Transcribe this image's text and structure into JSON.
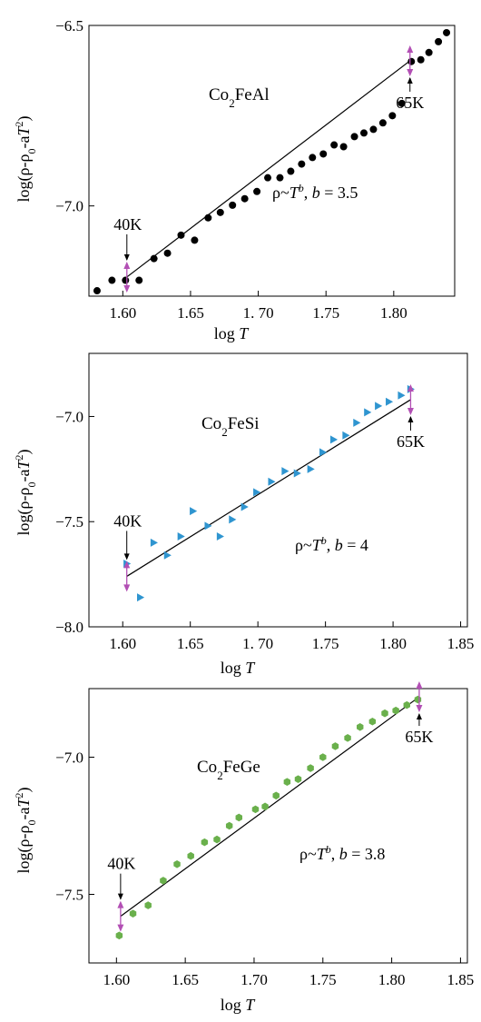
{
  "chart_data": [
    {
      "type": "scatter",
      "compound": "Co2FeAl",
      "title": {
        "base": "Co",
        "sub": "2",
        "rest": "FeAl"
      },
      "xlabel": "log T",
      "ylabel": "log(ρ-ρ0-aT2)",
      "xlim": [
        1.575,
        1.845
      ],
      "ylim": [
        -7.25,
        -6.5
      ],
      "xticks": [
        1.6,
        1.65,
        1.7,
        1.75,
        1.8
      ],
      "xtick_labels": [
        "1.60",
        "1.65",
        "1. 70",
        "1.75",
        "1.80"
      ],
      "yticks": [
        -6.5,
        -7.0
      ],
      "ytick_labels": [
        "−6.5",
        "−7.0"
      ],
      "marker": "circle",
      "color": "#000000",
      "equation": "ρ~T^b, b = 3.5",
      "exponent_b": "3.5",
      "fit": {
        "x": [
          1.603,
          1.812
        ],
        "y": [
          -7.197,
          -6.598
        ]
      },
      "annotations": [
        {
          "text": "40K",
          "x": 1.603,
          "y": -7.197
        },
        {
          "text": "65K",
          "x": 1.812,
          "y": -6.598
        }
      ],
      "x": [
        1.581,
        1.592,
        1.602,
        1.612,
        1.623,
        1.633,
        1.643,
        1.653,
        1.663,
        1.672,
        1.681,
        1.69,
        1.699,
        1.707,
        1.716,
        1.724,
        1.732,
        1.74,
        1.748,
        1.756,
        1.763,
        1.771,
        1.778,
        1.785,
        1.792,
        1.799,
        1.806,
        1.813,
        1.82,
        1.826,
        1.833,
        1.839
      ],
      "y": [
        -7.235,
        -7.206,
        -7.206,
        -7.206,
        -7.146,
        -7.131,
        -7.081,
        -7.095,
        -7.033,
        -7.018,
        -6.998,
        -6.98,
        -6.96,
        -6.922,
        -6.922,
        -6.904,
        -6.884,
        -6.866,
        -6.856,
        -6.831,
        -6.836,
        -6.808,
        -6.798,
        -6.788,
        -6.77,
        -6.75,
        -6.716,
        -6.6,
        -6.595,
        -6.575,
        -6.545,
        -6.52
      ]
    },
    {
      "type": "scatter",
      "compound": "Co2FeSi",
      "title": {
        "base": "Co",
        "sub": "2",
        "rest": "FeSi"
      },
      "xlabel": "log T",
      "ylabel": "log(ρ-ρ0-aT2)",
      "xlim": [
        1.575,
        1.855
      ],
      "ylim": [
        -8.0,
        -6.7
      ],
      "xticks": [
        1.6,
        1.65,
        1.7,
        1.75,
        1.8,
        1.85
      ],
      "xtick_labels": [
        "1.60",
        "1.65",
        "1. 70",
        "1.75",
        "1.80",
        "1.85"
      ],
      "yticks": [
        -7.0,
        -7.5,
        -8.0
      ],
      "ytick_labels": [
        "−7.0",
        "−7.5",
        "−8.0"
      ],
      "marker": "triangle-right",
      "color": "#2f95d0",
      "equation": "ρ~T^b, b = 4",
      "exponent_b": "4",
      "fit": {
        "x": [
          1.603,
          1.813
        ],
        "y": [
          -7.76,
          -6.92
        ]
      },
      "annotations": [
        {
          "text": "40K",
          "x": 1.603,
          "y": -7.76
        },
        {
          "text": "65K",
          "x": 1.813,
          "y": -6.92
        }
      ],
      "x": [
        1.603,
        1.613,
        1.623,
        1.633,
        1.643,
        1.652,
        1.663,
        1.672,
        1.681,
        1.69,
        1.699,
        1.71,
        1.72,
        1.729,
        1.739,
        1.748,
        1.756,
        1.765,
        1.773,
        1.781,
        1.789,
        1.797,
        1.806,
        1.813
      ],
      "y": [
        -7.7,
        -7.86,
        -7.6,
        -7.66,
        -7.57,
        -7.45,
        -7.52,
        -7.57,
        -7.49,
        -7.43,
        -7.36,
        -7.31,
        -7.26,
        -7.27,
        -7.25,
        -7.17,
        -7.11,
        -7.09,
        -7.03,
        -6.98,
        -6.95,
        -6.93,
        -6.9,
        -6.87
      ]
    },
    {
      "type": "scatter",
      "compound": "Co2FeGe",
      "title": {
        "base": "Co",
        "sub": "2",
        "rest": "FeGe"
      },
      "xlabel": "log T",
      "ylabel": "log(ρ-ρ0-aT2)",
      "xlim": [
        1.58,
        1.855
      ],
      "ylim": [
        -7.75,
        -6.75
      ],
      "xticks": [
        1.6,
        1.65,
        1.7,
        1.75,
        1.8,
        1.85
      ],
      "xtick_labels": [
        "1.60",
        "1.65",
        "1.70",
        "1.75",
        "1.80",
        "1.85"
      ],
      "yticks": [
        -7.0,
        -7.5
      ],
      "ytick_labels": [
        "−7.0",
        "−7.5"
      ],
      "marker": "hexagon",
      "color": "#6ab04c",
      "equation": "ρ~T^b, b = 3.8",
      "exponent_b": "3.8",
      "fit": {
        "x": [
          1.603,
          1.82
        ],
        "y": [
          -7.58,
          -6.78
        ]
      },
      "annotations": [
        {
          "text": "40K",
          "x": 1.603,
          "y": -7.58
        },
        {
          "text": "65K",
          "x": 1.82,
          "y": -6.78
        }
      ],
      "x": [
        1.602,
        1.612,
        1.623,
        1.634,
        1.644,
        1.654,
        1.664,
        1.673,
        1.682,
        1.689,
        1.701,
        1.708,
        1.716,
        1.724,
        1.732,
        1.741,
        1.75,
        1.759,
        1.768,
        1.777,
        1.786,
        1.795,
        1.803,
        1.811,
        1.819
      ],
      "y": [
        -7.65,
        -7.57,
        -7.54,
        -7.45,
        -7.39,
        -7.36,
        -7.31,
        -7.3,
        -7.25,
        -7.22,
        -7.19,
        -7.18,
        -7.14,
        -7.09,
        -7.08,
        -7.04,
        -7.0,
        -6.96,
        -6.93,
        -6.89,
        -6.87,
        -6.84,
        -6.83,
        -6.81,
        -6.79
      ]
    }
  ]
}
